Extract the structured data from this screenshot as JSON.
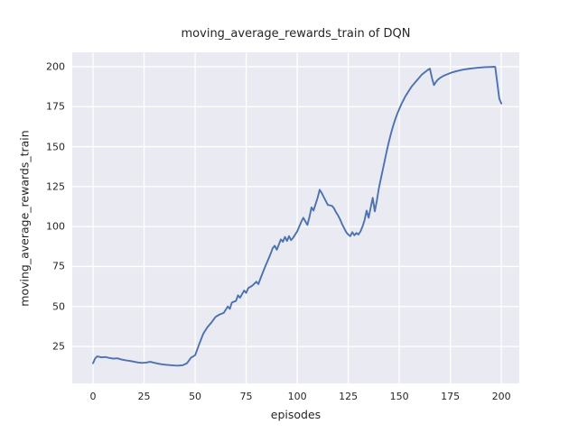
{
  "chart_data": {
    "type": "line",
    "title": "moving_average_rewards_train of DQN",
    "xlabel": "episodes",
    "ylabel": "moving_average_rewards_train",
    "xlim": [
      -10.2,
      208.8
    ],
    "ylim": [
      1.9,
      209.0
    ],
    "xticks": [
      0,
      25,
      50,
      75,
      100,
      125,
      150,
      175,
      200
    ],
    "yticks": [
      25,
      50,
      75,
      100,
      125,
      150,
      175,
      200
    ],
    "grid": true,
    "legend_position": "none",
    "colors": {
      "line": "#4C72B0",
      "plot_background": "#EAEAF2",
      "gridline": "#FFFFFF",
      "text": "#262626",
      "figure_background": "#FFFFFF"
    },
    "series": [
      {
        "name": "DQN moving average rewards (train)",
        "points": [
          [
            0,
            14.5
          ],
          [
            1,
            17.5
          ],
          [
            2,
            18.8
          ],
          [
            4,
            18.2
          ],
          [
            6,
            18.4
          ],
          [
            8,
            17.8
          ],
          [
            10,
            17.4
          ],
          [
            12,
            17.6
          ],
          [
            14,
            16.8
          ],
          [
            16,
            16.3
          ],
          [
            18,
            16.0
          ],
          [
            20,
            15.5
          ],
          [
            22,
            15.0
          ],
          [
            24,
            14.7
          ],
          [
            26,
            14.9
          ],
          [
            28,
            15.4
          ],
          [
            30,
            14.8
          ],
          [
            32,
            14.2
          ],
          [
            34,
            13.8
          ],
          [
            36,
            13.5
          ],
          [
            38,
            13.3
          ],
          [
            40,
            13.1
          ],
          [
            42,
            13.0
          ],
          [
            44,
            13.3
          ],
          [
            46,
            14.5
          ],
          [
            48,
            18.0
          ],
          [
            50,
            19.5
          ],
          [
            52,
            26.5
          ],
          [
            54,
            33.0
          ],
          [
            56,
            37.0
          ],
          [
            58,
            40.0
          ],
          [
            60,
            43.5
          ],
          [
            62,
            45.0
          ],
          [
            64,
            46.0
          ],
          [
            66,
            50.0
          ],
          [
            67,
            48.5
          ],
          [
            68,
            52.5
          ],
          [
            70,
            53.5
          ],
          [
            71,
            57.0
          ],
          [
            72,
            55.5
          ],
          [
            74,
            60.0
          ],
          [
            75,
            58.5
          ],
          [
            76,
            61.5
          ],
          [
            78,
            63.0
          ],
          [
            80,
            65.5
          ],
          [
            81,
            64.0
          ],
          [
            82,
            67.5
          ],
          [
            84,
            74.0
          ],
          [
            86,
            80.0
          ],
          [
            87,
            83.0
          ],
          [
            88,
            86.5
          ],
          [
            89,
            88.0
          ],
          [
            90,
            85.5
          ],
          [
            92,
            92.0
          ],
          [
            93,
            90.5
          ],
          [
            94,
            93.5
          ],
          [
            95,
            91.0
          ],
          [
            96,
            94.0
          ],
          [
            97,
            91.5
          ],
          [
            98,
            93.0
          ],
          [
            100,
            97.0
          ],
          [
            101,
            100.0
          ],
          [
            102,
            103.0
          ],
          [
            103,
            105.5
          ],
          [
            105,
            101.0
          ],
          [
            106,
            106.0
          ],
          [
            107,
            112.0
          ],
          [
            108,
            110.0
          ],
          [
            109,
            114.0
          ],
          [
            110,
            118.0
          ],
          [
            111,
            123.0
          ],
          [
            112,
            121.0
          ],
          [
            113,
            118.5
          ],
          [
            114,
            116.0
          ],
          [
            115,
            113.5
          ],
          [
            117,
            113.0
          ],
          [
            118,
            111.5
          ],
          [
            119,
            109.0
          ],
          [
            120,
            107.0
          ],
          [
            121,
            104.5
          ],
          [
            122,
            101.5
          ],
          [
            123,
            99.0
          ],
          [
            124,
            96.5
          ],
          [
            125,
            95.0
          ],
          [
            126,
            94.0
          ],
          [
            127,
            96.5
          ],
          [
            128,
            94.5
          ],
          [
            129,
            96.0
          ],
          [
            130,
            95.0
          ],
          [
            131,
            97.0
          ],
          [
            132,
            100.0
          ],
          [
            133,
            104.0
          ],
          [
            134,
            110.0
          ],
          [
            135,
            105.5
          ],
          [
            136,
            112.0
          ],
          [
            137,
            118.0
          ],
          [
            138,
            109.5
          ],
          [
            139,
            116.0
          ],
          [
            140,
            124.0
          ],
          [
            141,
            130.0
          ],
          [
            142,
            136.0
          ],
          [
            143,
            142.0
          ],
          [
            144,
            148.0
          ],
          [
            145,
            153.5
          ],
          [
            146,
            158.5
          ],
          [
            147,
            163.0
          ],
          [
            148,
            167.0
          ],
          [
            149,
            170.5
          ],
          [
            150,
            173.5
          ],
          [
            151,
            176.5
          ],
          [
            152,
            179.0
          ],
          [
            153,
            181.5
          ],
          [
            154,
            183.5
          ],
          [
            155,
            185.5
          ],
          [
            156,
            187.5
          ],
          [
            157,
            189.0
          ],
          [
            158,
            190.5
          ],
          [
            159,
            192.0
          ],
          [
            160,
            193.5
          ],
          [
            161,
            195.0
          ],
          [
            162,
            196.0
          ],
          [
            163,
            197.0
          ],
          [
            164,
            198.0
          ],
          [
            165,
            198.8
          ],
          [
            166,
            193.0
          ],
          [
            167,
            188.5
          ],
          [
            168,
            190.5
          ],
          [
            169,
            192.0
          ],
          [
            170,
            193.0
          ],
          [
            172,
            194.5
          ],
          [
            174,
            195.5
          ],
          [
            176,
            196.5
          ],
          [
            178,
            197.2
          ],
          [
            180,
            197.8
          ],
          [
            182,
            198.3
          ],
          [
            184,
            198.7
          ],
          [
            186,
            199.0
          ],
          [
            188,
            199.3
          ],
          [
            190,
            199.5
          ],
          [
            192,
            199.7
          ],
          [
            194,
            199.8
          ],
          [
            196,
            199.9
          ],
          [
            197,
            199.9
          ],
          [
            198,
            190.0
          ],
          [
            199,
            180.0
          ],
          [
            200,
            177.0
          ]
        ]
      }
    ]
  }
}
